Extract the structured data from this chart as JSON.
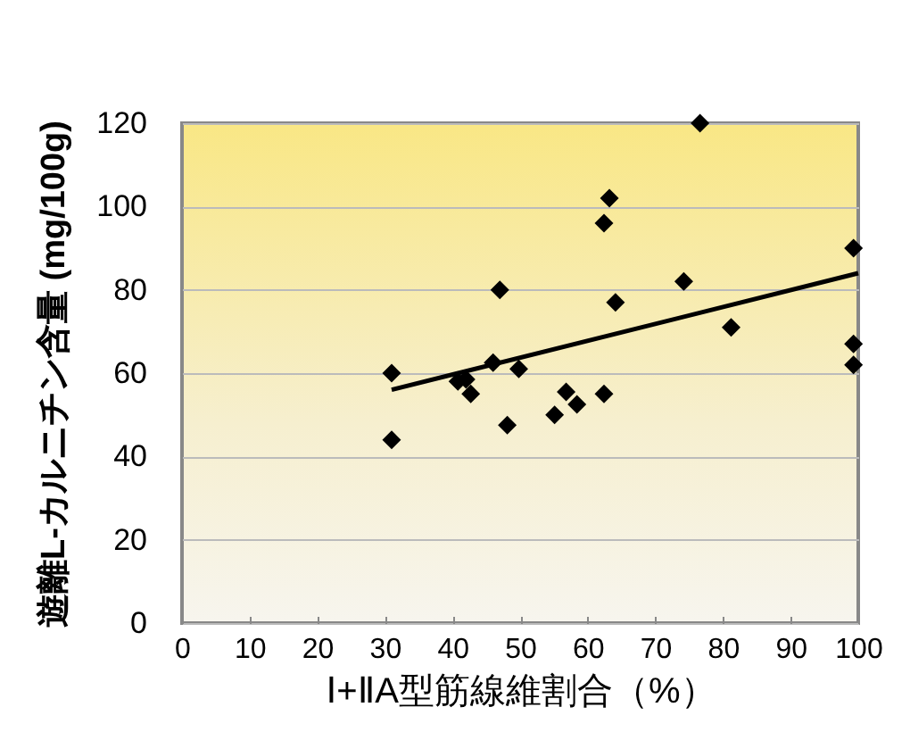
{
  "chart_data": {
    "type": "scatter",
    "xlabel": "Ⅰ+ⅡA型筋線維割合（%）",
    "ylabel": "遊離L-カルニチン含量 (mg/100g)",
    "xlim": [
      0,
      100
    ],
    "xticks": [
      0,
      10,
      20,
      30,
      40,
      50,
      60,
      70,
      80,
      90,
      100
    ],
    "ylim": [
      0,
      120
    ],
    "yticks": [
      0,
      20,
      40,
      60,
      80,
      100,
      120
    ],
    "grid": "y",
    "series": [
      {
        "marker": "diamond",
        "color": "#000000",
        "x": [
          31,
          31,
          40.8,
          42,
          42.7,
          46,
          47,
          48.1,
          49.8,
          55.1,
          56.8,
          58.4,
          62.4,
          62.4,
          63.2,
          64.1,
          74.2,
          76.6,
          81.2,
          99.3,
          99.3,
          99.3
        ],
        "values": [
          60,
          44,
          58,
          58.5,
          55,
          62.5,
          80,
          47.5,
          61,
          50,
          55.5,
          52.5,
          55,
          96,
          102,
          77,
          82,
          120,
          71,
          90,
          67,
          62
        ]
      },
      {
        "type": "line",
        "color": "#000000",
        "line_style": "solid",
        "x": [
          31,
          100
        ],
        "values": [
          56,
          84
        ]
      }
    ]
  }
}
